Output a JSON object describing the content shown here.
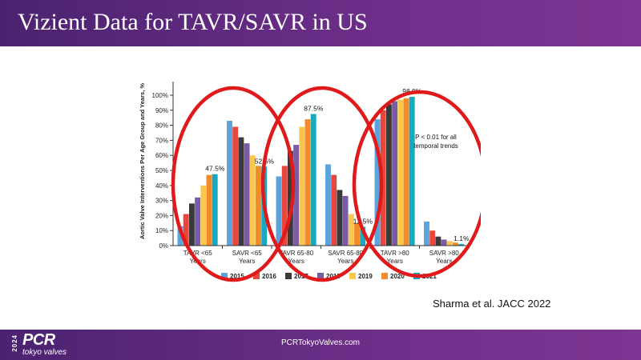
{
  "slide": {
    "title": "Vizient Data for TAVR/SAVR in US",
    "citation": "Sharma et al. JACC 2022",
    "footer_url": "PCRTokyoValves.com"
  },
  "logo": {
    "year": "2024",
    "main": "PCR",
    "sub": "tokyo valves"
  },
  "colors": {
    "header": "#6e2f8a",
    "highlight_ellipse": "#e01a1a"
  },
  "chart_data": {
    "type": "bar",
    "ylabel": "Aortic Valve Interventions Per Age Group and Years, %",
    "ylim": [
      0,
      100
    ],
    "yticks": [
      "0%",
      "10%",
      "20%",
      "30%",
      "40%",
      "50%",
      "60%",
      "70%",
      "80%",
      "90%",
      "100%"
    ],
    "categories": [
      [
        "TAVR <65",
        "Years"
      ],
      [
        "SAVR <65",
        "Years"
      ],
      [
        "TAVR 65-80",
        "Years"
      ],
      [
        "SAVR 65-80",
        "Years"
      ],
      [
        "TAVR >80",
        "Years"
      ],
      [
        "SAVR >80",
        "Years"
      ]
    ],
    "series": [
      {
        "name": "2015",
        "color": "#5ba3dc",
        "values": [
          13,
          83,
          46,
          54,
          84,
          16
        ]
      },
      {
        "name": "2016",
        "color": "#e8453c",
        "values": [
          21,
          79,
          53,
          47,
          90,
          10
        ]
      },
      {
        "name": "2017",
        "color": "#3a3a3a",
        "values": [
          28,
          72,
          63,
          37,
          94,
          6
        ]
      },
      {
        "name": "2018",
        "color": "#7b5aa6",
        "values": [
          32,
          68,
          67,
          33,
          96,
          4
        ]
      },
      {
        "name": "2019",
        "color": "#f9c74f",
        "values": [
          40,
          60,
          79,
          21,
          97,
          3
        ]
      },
      {
        "name": "2020",
        "color": "#f28c28",
        "values": [
          47,
          53,
          84,
          15,
          98,
          2
        ]
      },
      {
        "name": "2021",
        "color": "#17a9c0",
        "values": [
          47.5,
          52.5,
          87.5,
          12.5,
          98.9,
          1.1
        ]
      }
    ],
    "annotations": [
      "47.5%",
      "52.5%",
      "87.5%",
      "12.5%",
      "98.9%",
      "1.1%"
    ],
    "note": [
      "P < 0.01 for all",
      "temporal trends"
    ]
  }
}
